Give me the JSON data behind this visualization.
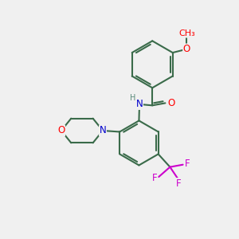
{
  "bg_color": "#f0f0f0",
  "bond_color": "#3a6b4a",
  "bond_width": 1.5,
  "atom_colors": {
    "O": "#ff0000",
    "N": "#0000cc",
    "F": "#cc00cc",
    "H": "#5a8a7a",
    "C": "#3a6b4a"
  },
  "font_size": 8.5,
  "fig_size": [
    3.0,
    3.0
  ],
  "dpi": 100
}
